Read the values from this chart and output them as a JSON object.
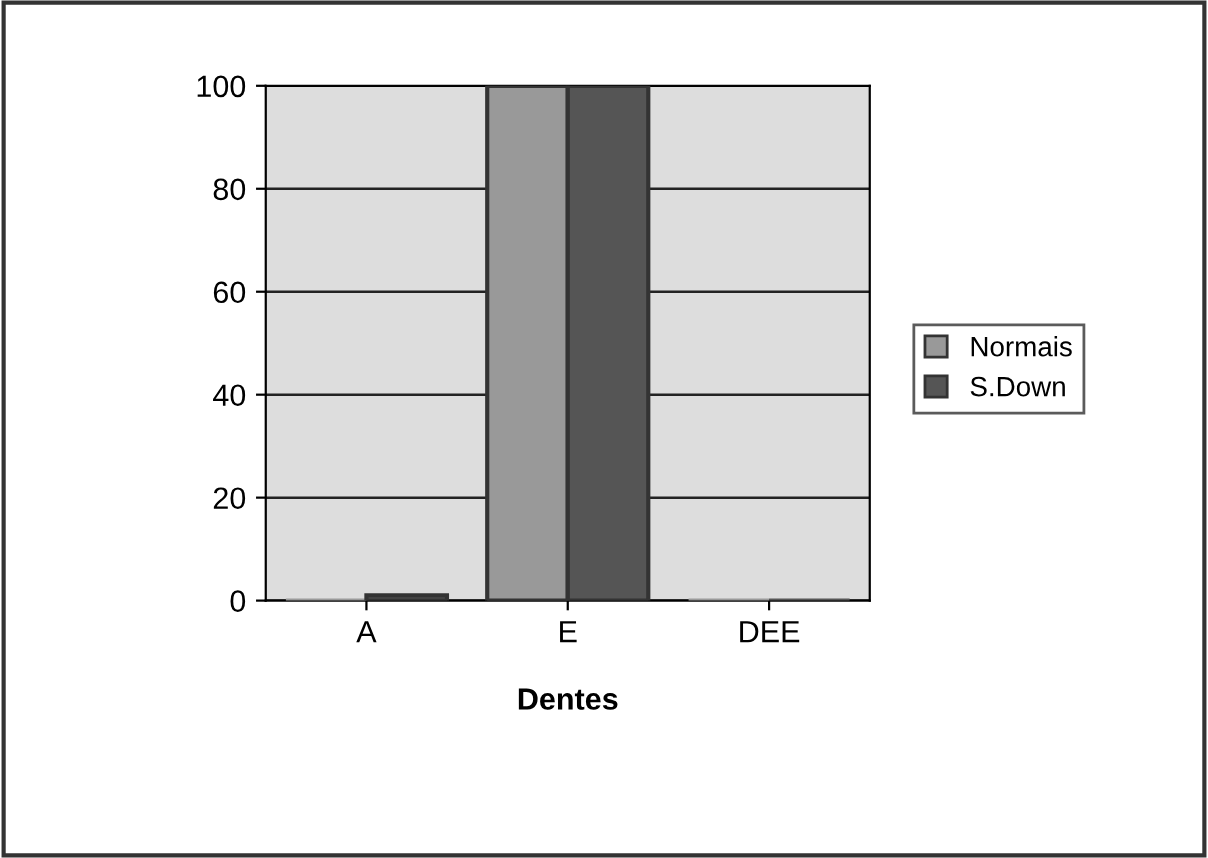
{
  "chart_data": {
    "type": "bar",
    "xlabel": "Dentes",
    "categories": [
      "A",
      "E",
      "DEE"
    ],
    "series": [
      {
        "name": "Normais",
        "color": "#999999",
        "values": [
          0,
          100,
          0
        ]
      },
      {
        "name": "S.Down",
        "color": "#555555",
        "values": [
          1,
          100,
          0
        ]
      }
    ],
    "ylim": [
      0,
      100
    ],
    "yticks": [
      0,
      20,
      40,
      60,
      80,
      100
    ],
    "grid": "y",
    "legend": "right"
  }
}
